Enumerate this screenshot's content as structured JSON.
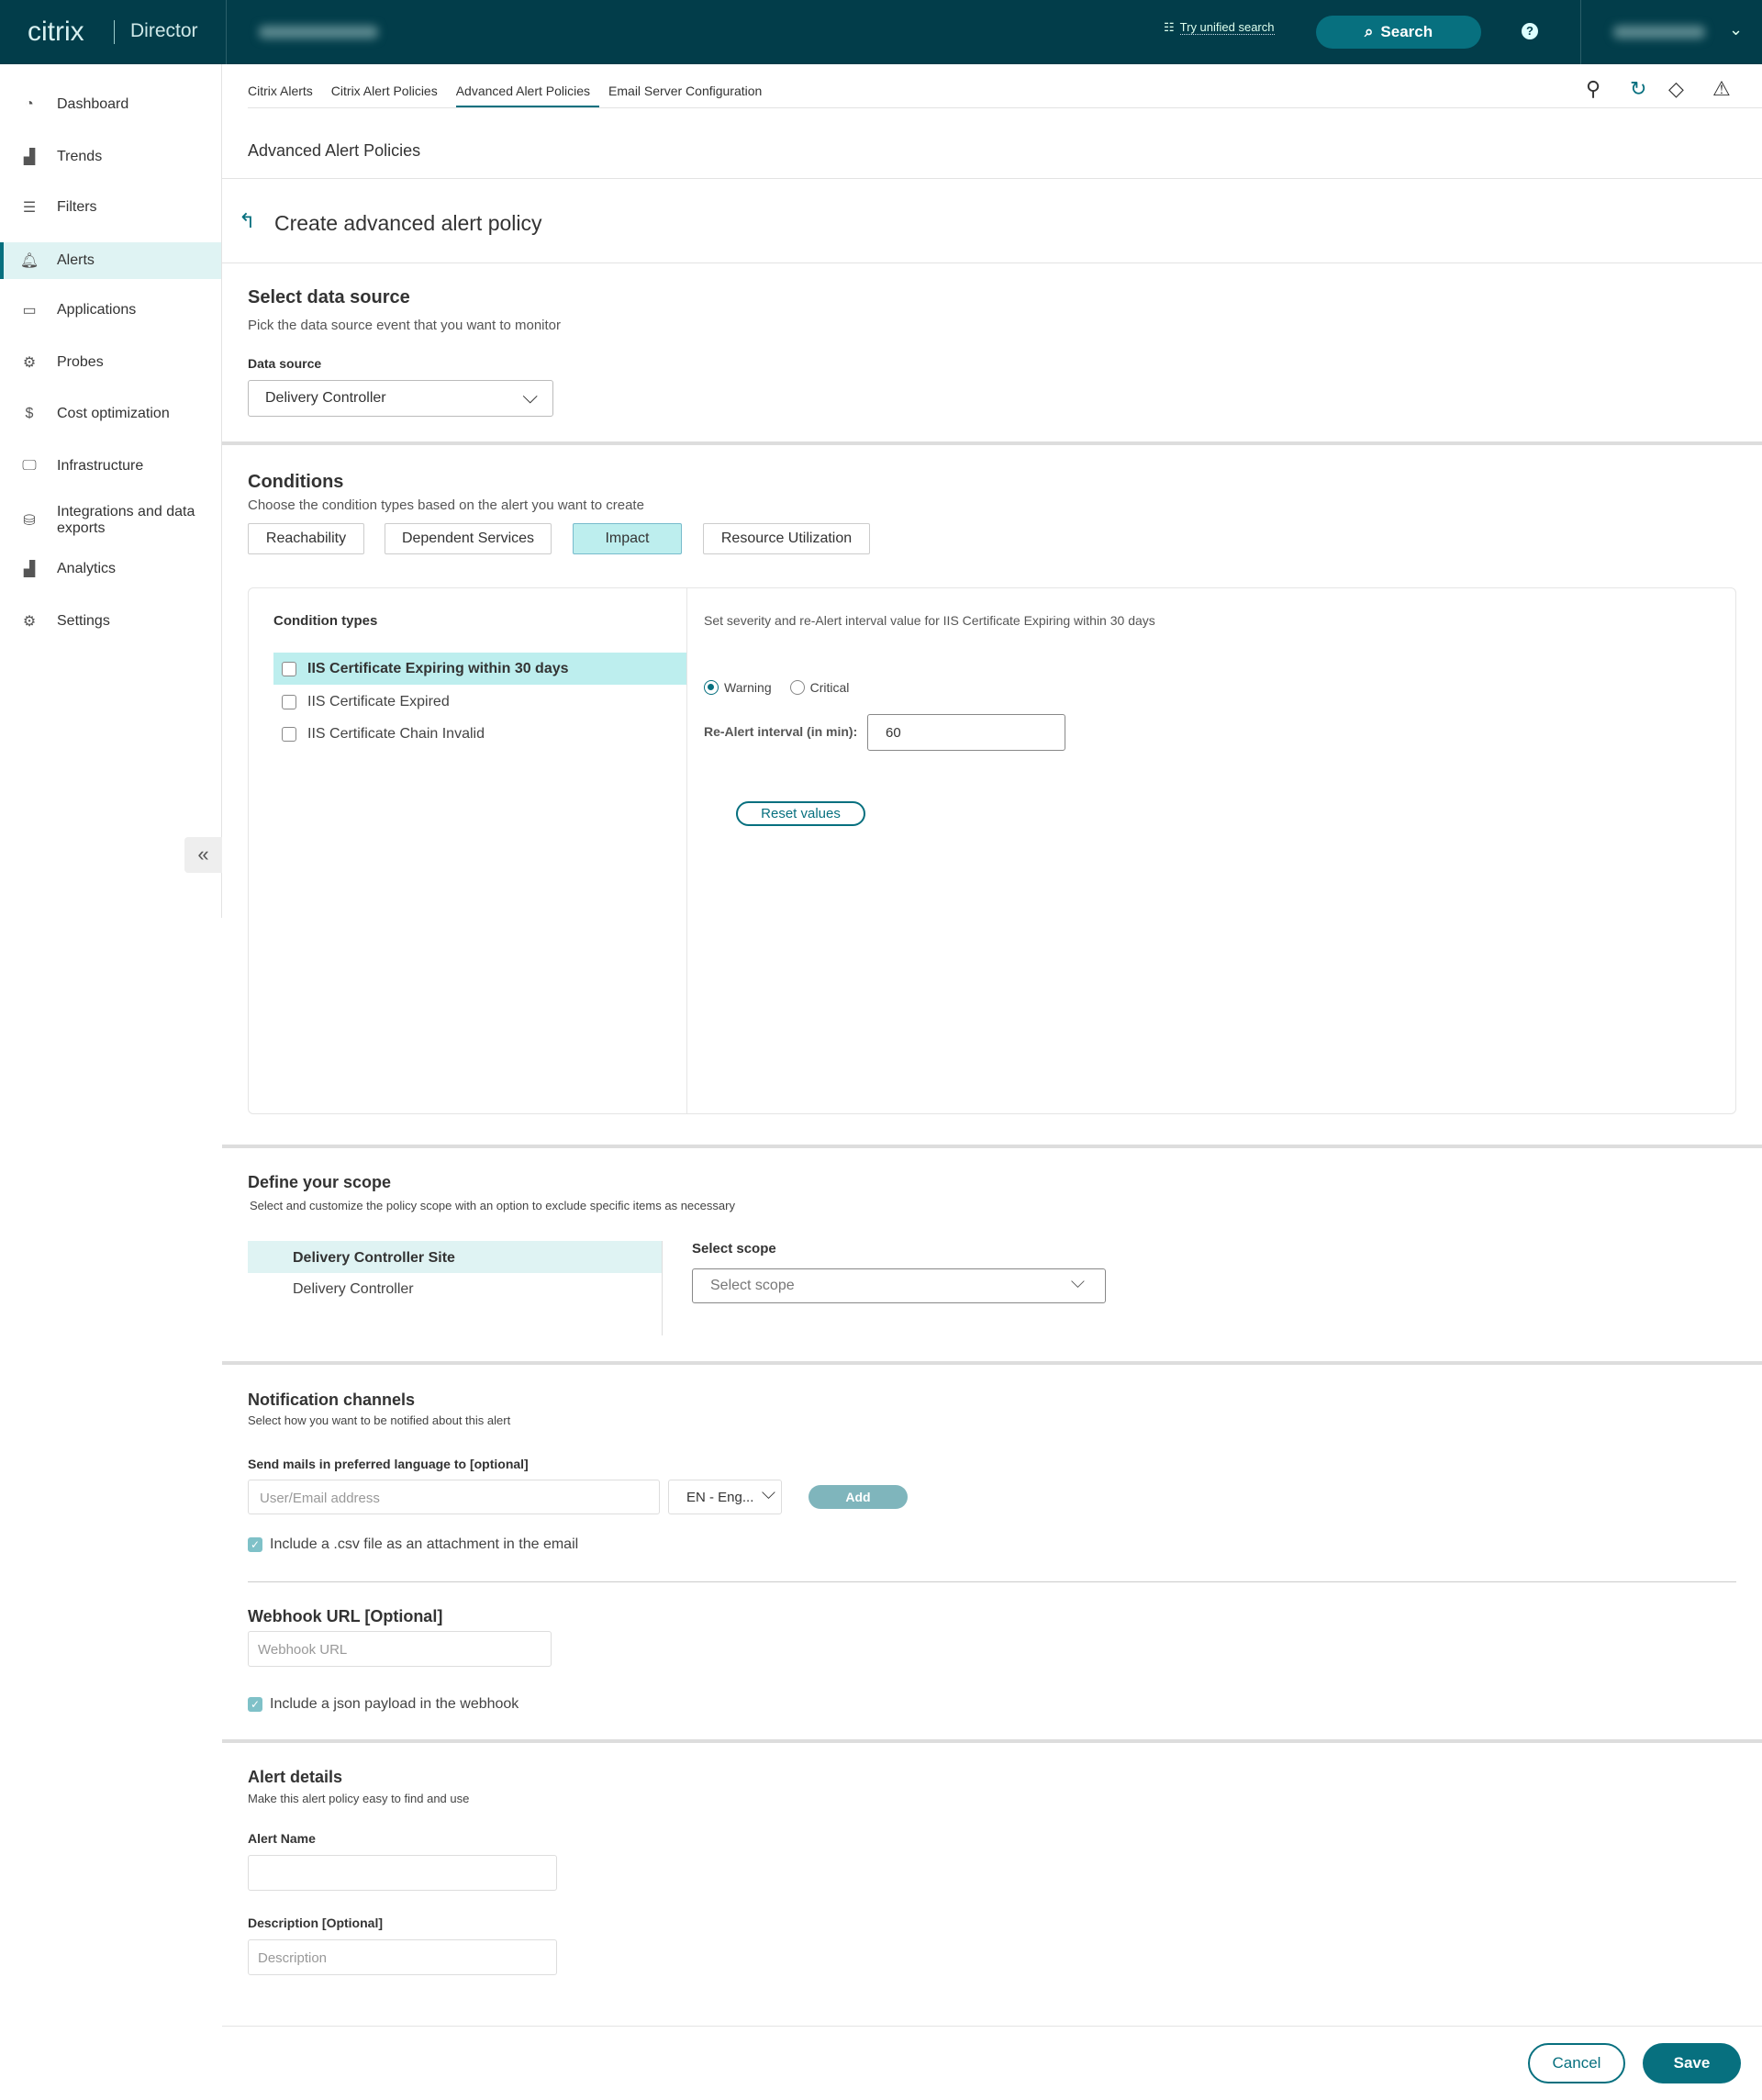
{
  "header": {
    "logo": "citrix",
    "product": "Director",
    "unified_search": "Try unified search",
    "search_label": "Search",
    "help": "?"
  },
  "sidebar": {
    "items": [
      {
        "label": "Dashboard",
        "icon": "dashboard-icon",
        "glyph": "◔"
      },
      {
        "label": "Trends",
        "icon": "trends-icon",
        "glyph": "▟"
      },
      {
        "label": "Filters",
        "icon": "filters-icon",
        "glyph": "☰"
      },
      {
        "label": "Alerts",
        "icon": "bell-icon",
        "glyph": "🔔︎",
        "active": true
      },
      {
        "label": "Applications",
        "icon": "applications-icon",
        "glyph": "▭"
      },
      {
        "label": "Probes",
        "icon": "probes-icon",
        "glyph": "⚙"
      },
      {
        "label": "Cost optimization",
        "icon": "cost-icon",
        "glyph": "$"
      },
      {
        "label": "Infrastructure",
        "icon": "infrastructure-icon",
        "glyph": "🖵"
      },
      {
        "label": "Integrations and data exports",
        "icon": "integrations-icon",
        "glyph": "⛁"
      },
      {
        "label": "Analytics",
        "icon": "analytics-icon",
        "glyph": "▟"
      },
      {
        "label": "Settings",
        "icon": "settings-icon",
        "glyph": "⚙"
      }
    ],
    "collapse": "«"
  },
  "tabs": [
    {
      "label": "Citrix Alerts"
    },
    {
      "label": "Citrix Alert Policies"
    },
    {
      "label": "Advanced Alert Policies",
      "active": true
    },
    {
      "label": "Email Server Configuration"
    }
  ],
  "page": {
    "section_title": "Advanced Alert Policies",
    "title": "Create advanced alert policy",
    "back": "↰"
  },
  "datasource": {
    "title": "Select data source",
    "subtitle": "Pick the data source event that you want to monitor",
    "label": "Data source",
    "value": "Delivery Controller"
  },
  "conditions": {
    "title": "Conditions",
    "subtitle": "Choose the condition types based on the alert you want to create",
    "buttons": [
      {
        "label": "Reachability"
      },
      {
        "label": "Dependent Services"
      },
      {
        "label": "Impact",
        "active": true
      },
      {
        "label": "Resource Utilization"
      }
    ],
    "types_label": "Condition types",
    "types": [
      {
        "label": "IIS Certificate Expiring within 30 days",
        "selected": true
      },
      {
        "label": "IIS Certificate Expired"
      },
      {
        "label": "IIS Certificate Chain Invalid"
      }
    ],
    "detail_text": "Set severity and re-Alert interval value for IIS Certificate Expiring within 30 days",
    "severity": {
      "options": [
        "Warning",
        "Critical"
      ],
      "selected": "Warning"
    },
    "interval_label": "Re-Alert interval (in min):",
    "interval_value": "60",
    "reset": "Reset values"
  },
  "scope": {
    "title": "Define your scope",
    "subtitle": "Select and customize the policy scope with an option to exclude specific items as necessary",
    "items": [
      {
        "label": "Delivery Controller Site",
        "selected": true
      },
      {
        "label": "Delivery Controller"
      }
    ],
    "select_label": "Select scope",
    "select_placeholder": "Select scope"
  },
  "notification": {
    "title": "Notification channels",
    "subtitle": "Select how you want to be notified about this alert",
    "mail_label": "Send mails in preferred language to [optional]",
    "email_placeholder": "User/Email address",
    "language": "EN - Eng...",
    "add": "Add",
    "csv_label": "Include a .csv file as an attachment in the email",
    "csv_checked": true,
    "webhook_title": "Webhook URL [Optional]",
    "webhook_placeholder": "Webhook URL",
    "json_label": "Include a json payload in the webhook",
    "json_checked": true
  },
  "details": {
    "title": "Alert details",
    "subtitle": "Make this alert policy easy to find and use",
    "name_label": "Alert Name",
    "name_value": "",
    "desc_label": "Description [Optional]",
    "desc_placeholder": "Description"
  },
  "footer": {
    "cancel": "Cancel",
    "save": "Save"
  },
  "colors": {
    "header": "#023d4a",
    "accent": "#07707f",
    "highlight": "#bdeeee"
  }
}
